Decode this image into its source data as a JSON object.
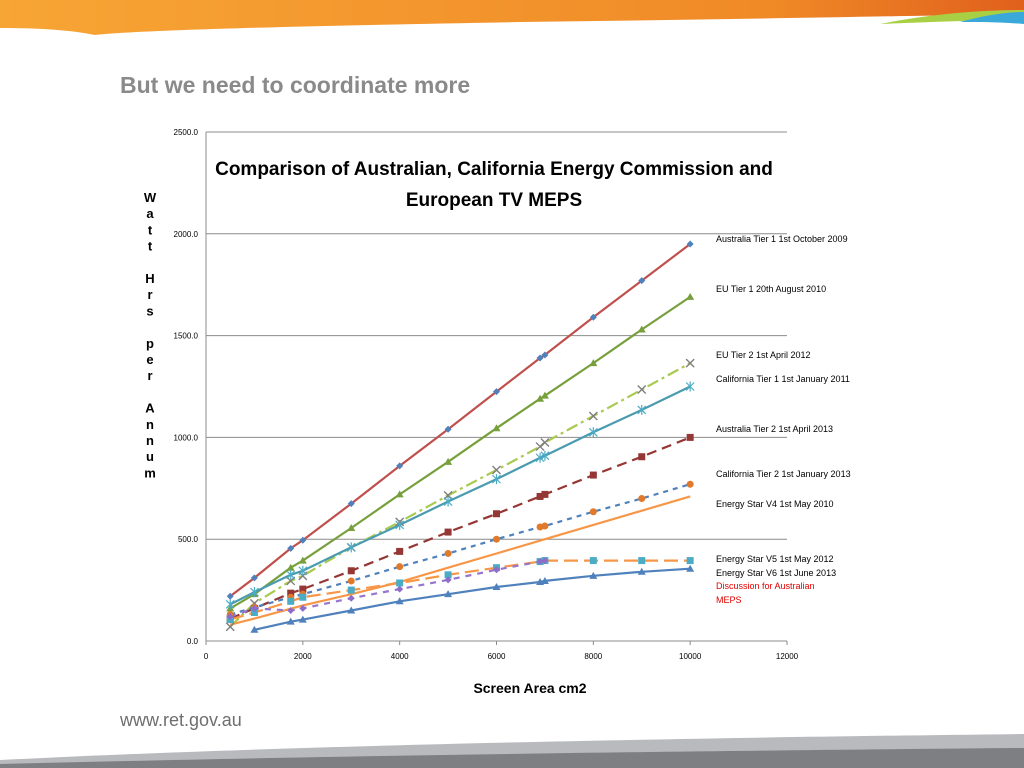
{
  "slide": {
    "title": "But we need to coordinate more",
    "footer_url": "www.ret.gov.au"
  },
  "colors": {
    "top_band": "#f59a2c",
    "top_band_dark": "#e8701e",
    "accent_green": "#a9cf45",
    "accent_blue": "#3aa8d8",
    "bottom_band": "#7d7f82",
    "title_gray": "#8a8a8a"
  },
  "chart_data": {
    "type": "line",
    "title_lines": [
      "Comparison of Australian, California Energy Commission and",
      "European TV MEPS"
    ],
    "xlabel": "Screen Area cm2",
    "ylabel": "Watt Hrs per Annum",
    "xlim": [
      0,
      12000
    ],
    "ylim": [
      0,
      2500
    ],
    "x_ticks": [
      0,
      2000,
      4000,
      6000,
      8000,
      10000,
      12000
    ],
    "y_ticks": [
      "0.0",
      "500.0",
      "1000.0",
      "1500.0",
      "2000.0",
      "2500.0"
    ],
    "y_tick_values": [
      0,
      500,
      1000,
      1500,
      2000,
      2500
    ],
    "grid": "horizontal",
    "series": [
      {
        "name": "Australia Tier 1 1st October 2009",
        "color": "#c0504d",
        "marker_color": "#4f81bd",
        "marker": "diamond",
        "dash": "",
        "x": [
          500,
          1000,
          1750,
          2000,
          3000,
          4000,
          5000,
          6000,
          6900,
          7000,
          8000,
          9000,
          10000
        ],
        "y": [
          220,
          310,
          455,
          495,
          675,
          860,
          1040,
          1225,
          1390,
          1405,
          1590,
          1770,
          1950
        ]
      },
      {
        "name": "EU Tier 1 20th August 2010",
        "color": "#77a03c",
        "marker_color": "#77a03c",
        "marker": "triangle",
        "dash": "",
        "x": [
          500,
          1000,
          1750,
          2000,
          3000,
          4000,
          5000,
          6000,
          6900,
          7000,
          8000,
          9000,
          10000
        ],
        "y": [
          160,
          230,
          360,
          395,
          555,
          720,
          880,
          1045,
          1190,
          1205,
          1365,
          1530,
          1690
        ]
      },
      {
        "name": "EU Tier 2 1st April 2012",
        "color": "#a9c94f",
        "marker_color": "#7f7f7f",
        "marker": "x",
        "dash": "12,4,3,4",
        "x": [
          500,
          1000,
          1750,
          2000,
          3000,
          4000,
          5000,
          6000,
          6900,
          7000,
          8000,
          9000,
          10000
        ],
        "y": [
          70,
          185,
          295,
          320,
          460,
          585,
          715,
          840,
          955,
          975,
          1105,
          1235,
          1365
        ]
      },
      {
        "name": "California Tier 1 1st January 2011",
        "color": "#4a9bb0",
        "marker_color": "#4bacc6",
        "marker": "star",
        "dash": "",
        "x": [
          500,
          1000,
          1750,
          2000,
          3000,
          4000,
          5000,
          6000,
          6900,
          7000,
          8000,
          9000,
          10000
        ],
        "y": [
          180,
          240,
          325,
          345,
          460,
          570,
          685,
          795,
          900,
          910,
          1025,
          1135,
          1250
        ]
      },
      {
        "name": "Australia Tier 2 1st April 2013",
        "color": "#953735",
        "marker_color": "#953735",
        "marker": "square",
        "dash": "10,6",
        "x": [
          500,
          1000,
          1750,
          2000,
          3000,
          4000,
          5000,
          6000,
          6900,
          7000,
          8000,
          9000,
          10000
        ],
        "y": [
          110,
          160,
          235,
          255,
          345,
          440,
          535,
          625,
          710,
          720,
          815,
          905,
          1000
        ]
      },
      {
        "name": "California Tier 2 1st January 2013",
        "color": "#4f81bd",
        "marker_color": "#e1792b",
        "marker": "circle",
        "dash": "5,5",
        "x": [
          500,
          1000,
          1750,
          2000,
          3000,
          4000,
          5000,
          6000,
          6900,
          7000,
          8000,
          9000,
          10000
        ],
        "y": [
          130,
          165,
          215,
          230,
          295,
          365,
          430,
          500,
          560,
          565,
          635,
          700,
          770
        ]
      },
      {
        "name": "Energy Star V4 1st May 2010",
        "color": "#f79646",
        "marker_color": "#f79646",
        "marker": "none",
        "dash": "",
        "x": [
          500,
          1000,
          2000,
          3000,
          4000,
          5000,
          6000,
          7000,
          8000,
          9000,
          10000
        ],
        "y": [
          80,
          110,
          175,
          230,
          290,
          360,
          430,
          500,
          570,
          640,
          710
        ]
      },
      {
        "name": "Energy Star V5 1st May 2012",
        "color": "#f79646",
        "marker_color": "#4bacc6",
        "marker": "square",
        "dash": "14,6",
        "x": [
          500,
          1000,
          1750,
          2000,
          3000,
          4000,
          5000,
          6000,
          6900,
          7000,
          8000,
          9000,
          10000
        ],
        "y": [
          105,
          140,
          195,
          215,
          250,
          285,
          325,
          360,
          390,
          395,
          395,
          395,
          395
        ]
      },
      {
        "name": "Energy Star V6 1st June 2013",
        "color": "#9575cd",
        "marker_color": "#8e6cc9",
        "marker": "diamond",
        "dash": "6,6",
        "x": [
          500,
          1000,
          1750,
          2000,
          3000,
          4000,
          5000,
          6000,
          6900,
          7000
        ],
        "y": [
          120,
          160,
          150,
          160,
          210,
          255,
          300,
          350,
          390,
          395
        ]
      },
      {
        "name": "Discussion for Australian MEPS",
        "color": "#4f81bd",
        "marker_color": "#4f81bd",
        "marker": "triangle",
        "dash": "",
        "x": [
          1000,
          1750,
          2000,
          3000,
          4000,
          5000,
          6000,
          6900,
          7000,
          8000,
          9000,
          10000
        ],
        "y": [
          55,
          95,
          105,
          150,
          195,
          230,
          265,
          290,
          295,
          320,
          340,
          355
        ]
      }
    ],
    "legend_labels": [
      {
        "text": "Australia Tier 1 1st October 2009",
        "color": "#000000"
      },
      {
        "text": "EU Tier 1 20th August 2010",
        "color": "#000000"
      },
      {
        "text": "EU Tier 2 1st April 2012",
        "color": "#000000"
      },
      {
        "text": "California Tier 1 1st January 2011",
        "color": "#000000"
      },
      {
        "text": "Australia Tier 2 1st April 2013",
        "color": "#000000"
      },
      {
        "text": "California Tier 2 1st January 2013",
        "color": "#000000"
      },
      {
        "text": "Energy Star V4 1st May 2010",
        "color": "#000000"
      },
      {
        "text": "Energy Star V5 1st May 2012",
        "color": "#000000"
      },
      {
        "text": "Energy Star V6 1st June 2013",
        "color": "#000000"
      },
      {
        "text": "Discussion for Australian",
        "color": "#e00000"
      },
      {
        "text": "MEPS",
        "color": "#e00000"
      }
    ]
  }
}
